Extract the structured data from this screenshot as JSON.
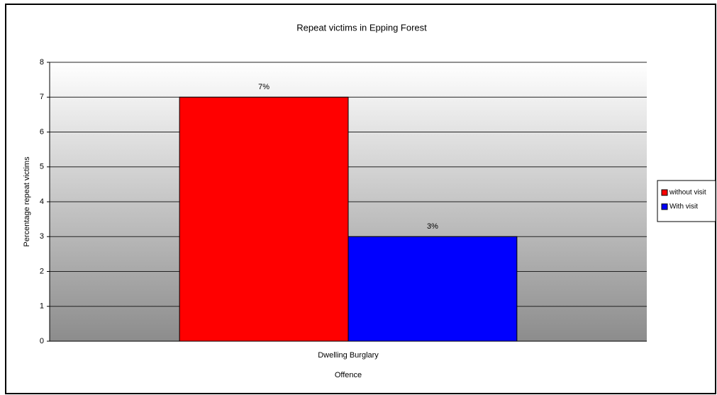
{
  "chart_data": {
    "type": "bar",
    "title": "Repeat victims in Epping Forest",
    "x_label": "Offence",
    "y_label": "Percentage repeat victims",
    "categories": [
      "Dwelling Burglary"
    ],
    "series": [
      {
        "name": "without visit",
        "color": "#ff0000",
        "values": [
          7
        ],
        "value_labels": [
          "7%"
        ]
      },
      {
        "name": "With visit",
        "color": "#0000ff",
        "values": [
          3
        ],
        "value_labels": [
          "3%"
        ]
      }
    ],
    "ylim": [
      0,
      8
    ],
    "yticks": [
      0,
      1,
      2,
      3,
      4,
      5,
      6,
      7,
      8
    ],
    "grid": true,
    "legend": "right"
  }
}
